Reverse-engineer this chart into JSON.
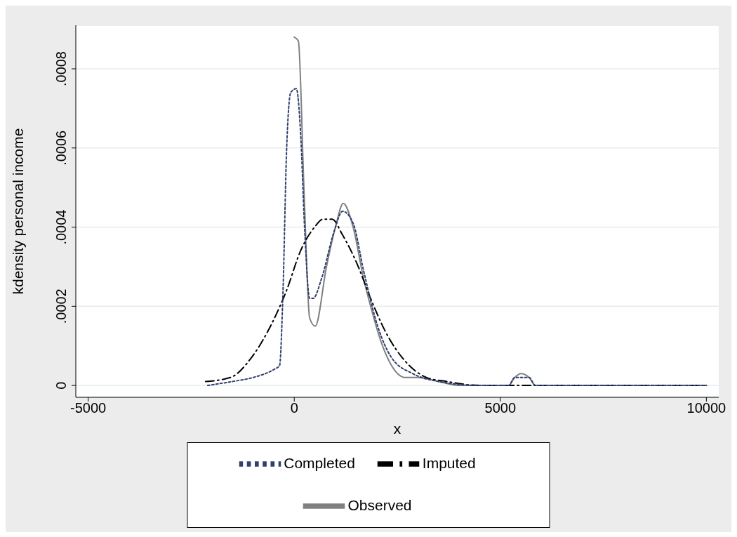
{
  "chart_data": {
    "type": "line",
    "xlabel": "x",
    "ylabel": "kdensity personal income",
    "xlim": [
      -5300,
      10300
    ],
    "xticks": [
      -5000,
      0,
      5000,
      10000
    ],
    "ylim": [
      -3e-05,
      0.00091
    ],
    "yticks": [
      0,
      {
        "value": 0.0002,
        "label": ".0002"
      },
      {
        "value": 0.0004,
        "label": ".0004"
      },
      {
        "value": 0.0006,
        "label": ".0006"
      },
      {
        "value": 0.0008,
        "label": ".0008"
      }
    ],
    "grid": "y",
    "legend": "bottom",
    "series": [
      {
        "name": "Observed",
        "color": "#808080",
        "line_style": "solid",
        "x": [
          0,
          100,
          238,
          374,
          510,
          782,
          1000,
          1190,
          1428,
          1683,
          1853,
          2108,
          2363,
          2703,
          3000,
          3500,
          4000,
          5000,
          5200,
          5350,
          5500,
          5700,
          5850,
          7000,
          10000
        ],
        "values": [
          0.00088,
          0.00087,
          0.00049,
          0.00017,
          0.00015,
          0.0003,
          0.0004,
          0.00046,
          0.0004,
          0.00027,
          0.0002,
          0.00011,
          5e-05,
          2e-05,
          2e-05,
          1e-05,
          0,
          0,
          0,
          2e-05,
          3e-05,
          2e-05,
          0,
          0,
          0
        ]
      },
      {
        "name": "Imputed",
        "color": "#000000",
        "line_style": "dashed",
        "x": [
          -2150,
          -1550,
          -1040,
          -527,
          -187,
          153,
          493,
          700,
          918,
          1173,
          1513,
          1853,
          2193,
          2703,
          3213,
          3700,
          4500,
          5000,
          5500,
          7000,
          10000
        ],
        "values": [
          1e-05,
          2e-05,
          7e-05,
          0.00016,
          0.00024,
          0.00034,
          0.0004,
          0.00042,
          0.00042,
          0.00038,
          0.00031,
          0.00022,
          0.00014,
          6e-05,
          2e-05,
          1e-05,
          0,
          0,
          0,
          0,
          0
        ]
      },
      {
        "name": "Completed",
        "color": "#2f3f6f",
        "line_style": "dotted",
        "x": [
          -2100,
          -1500,
          -1000,
          -500,
          -357,
          -272,
          -187,
          -85,
          51,
          153,
          255,
          374,
          459,
          663,
          969,
          1173,
          1428,
          1683,
          2023,
          2363,
          2873,
          3500,
          4500,
          5200,
          5350,
          5500,
          5700,
          5850,
          10000
        ],
        "values": [
          0,
          1e-05,
          2e-05,
          4e-05,
          5e-05,
          0.00024,
          0.00059,
          0.00074,
          0.00075,
          0.00064,
          0.00039,
          0.00022,
          0.00022,
          0.00027,
          0.00039,
          0.00044,
          0.00041,
          0.00029,
          0.00015,
          7e-05,
          3e-05,
          1e-05,
          0,
          0,
          2e-05,
          2e-05,
          2e-05,
          0,
          0
        ]
      }
    ]
  }
}
